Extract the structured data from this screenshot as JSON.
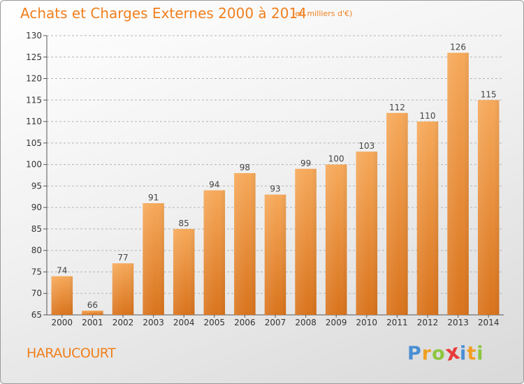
{
  "header": {
    "title": "Achats et Charges Externes 2000 à 2014",
    "subtitle": "(en milliers d'€)"
  },
  "footer": {
    "city": "HARAUCOURT",
    "logo_letters": [
      "P",
      "r",
      "o",
      "x",
      "i",
      "t",
      "i"
    ],
    "logo_colors": [
      "#4a8fd4",
      "#f0a022",
      "#8dc63f",
      "#e83a3a",
      "#4a8fd4",
      "#f0a022",
      "#8dc63f"
    ]
  },
  "colors": {
    "bar_top": "#f6a95a",
    "bar_bottom": "#d9731c",
    "accent": "#f07f1c"
  },
  "chart_data": {
    "type": "bar",
    "title": "Achats et Charges Externes 2000 à 2014",
    "subtitle": "(en milliers d'€)",
    "categories": [
      "2000",
      "2001",
      "2002",
      "2003",
      "2004",
      "2005",
      "2006",
      "2007",
      "2008",
      "2009",
      "2010",
      "2011",
      "2012",
      "2013",
      "2014"
    ],
    "values": [
      74,
      66,
      77,
      91,
      85,
      94,
      98,
      93,
      99,
      100,
      103,
      112,
      110,
      126,
      115
    ],
    "ylim": [
      65,
      130
    ],
    "yticks": [
      65,
      70,
      75,
      80,
      85,
      90,
      95,
      100,
      105,
      110,
      115,
      120,
      125,
      130
    ],
    "grid": true,
    "legend": "none"
  }
}
